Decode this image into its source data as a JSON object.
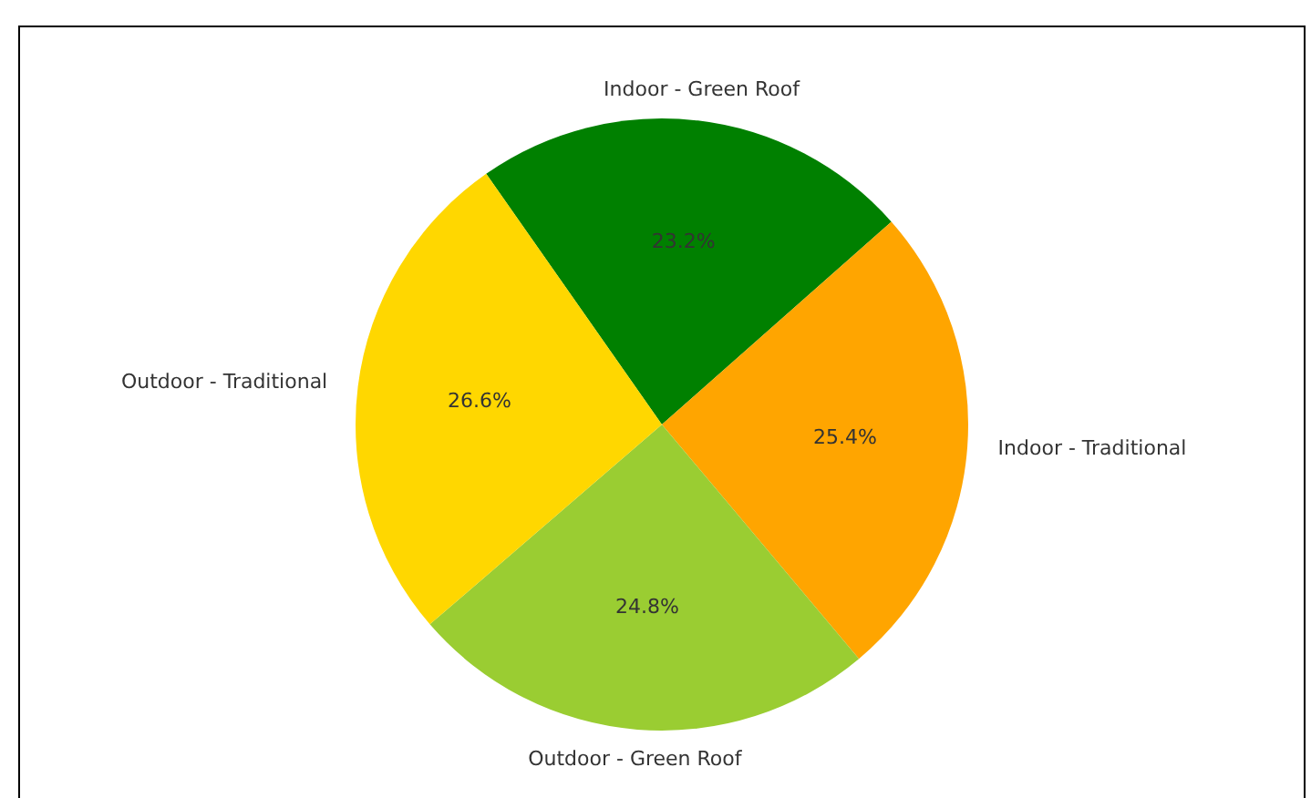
{
  "chart_data": {
    "type": "pie",
    "categories": [
      "Indoor - Green Roof",
      "Indoor - Traditional",
      "Outdoor - Green Roof",
      "Outdoor - Traditional"
    ],
    "values": [
      23.2,
      25.4,
      24.8,
      26.6
    ],
    "colors": [
      "#008000",
      "#ffa500",
      "#9acd32",
      "#ffd700"
    ],
    "value_labels": [
      "23.2%",
      "25.4%",
      "24.8%",
      "26.6%"
    ],
    "legend": false
  }
}
